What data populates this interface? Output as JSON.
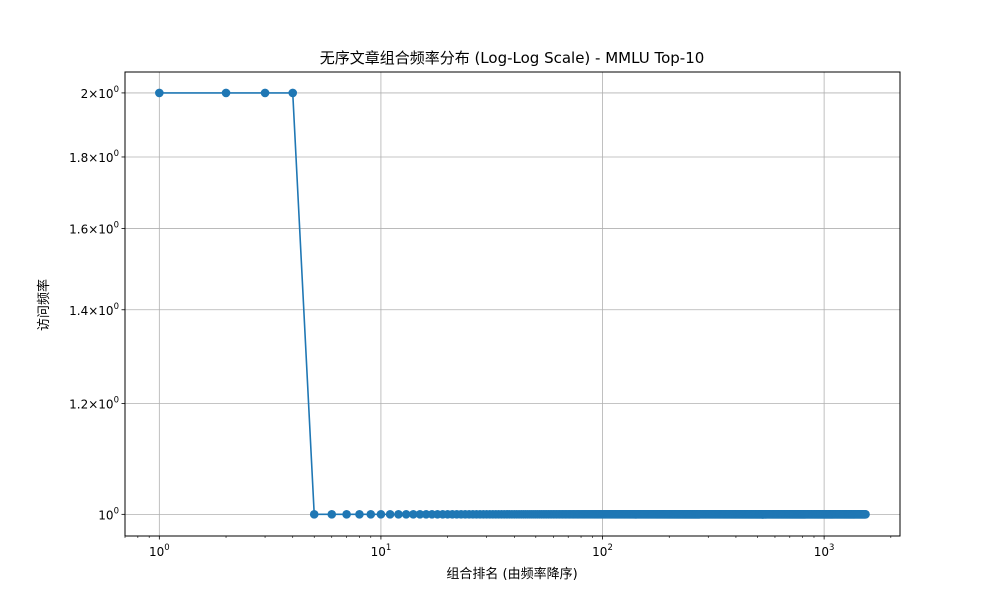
{
  "chart_data": {
    "type": "line",
    "title": "无序文章组合频率分布 (Log-Log Scale) - MMLU Top-10",
    "xlabel": "组合排名 (由频率降序)",
    "ylabel": "访问频率",
    "xscale": "log",
    "yscale": "log",
    "xlim": [
      0.7,
      2200
    ],
    "ylim": [
      0.965,
      2.07
    ],
    "grid": true,
    "x_ticks": [
      {
        "value": 1,
        "base": "10",
        "exp": "0"
      },
      {
        "value": 10,
        "base": "10",
        "exp": "1"
      },
      {
        "value": 100,
        "base": "10",
        "exp": "2"
      },
      {
        "value": 1000,
        "base": "10",
        "exp": "3"
      }
    ],
    "y_ticks": [
      {
        "value": 1.0,
        "mant": "",
        "base": "10",
        "exp": "0"
      },
      {
        "value": 1.2,
        "mant": "1.2×",
        "base": "10",
        "exp": "0"
      },
      {
        "value": 1.4,
        "mant": "1.4×",
        "base": "10",
        "exp": "0"
      },
      {
        "value": 1.6,
        "mant": "1.6×",
        "base": "10",
        "exp": "0"
      },
      {
        "value": 1.8,
        "mant": "1.8×",
        "base": "10",
        "exp": "0"
      },
      {
        "value": 2.0,
        "mant": "2×",
        "base": "10",
        "exp": "0"
      }
    ],
    "series": [
      {
        "color": "#1f77b4",
        "marker": "circle",
        "points": [
          [
            1,
            2
          ],
          [
            2,
            2
          ],
          [
            3,
            2
          ],
          [
            4,
            2
          ],
          {
            "x_from": 5,
            "x_to": 1540,
            "y": 1
          }
        ]
      }
    ]
  }
}
